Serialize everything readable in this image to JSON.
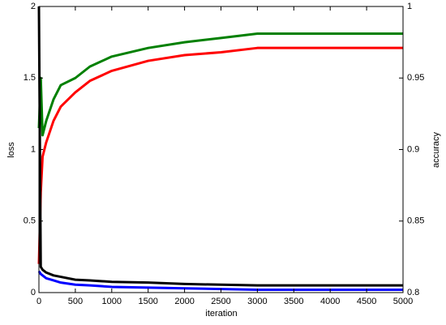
{
  "chart_data": {
    "type": "line",
    "x_label": "iteration",
    "y_label": "loss",
    "y2_label": "accuracy",
    "x": [
      0,
      25,
      50,
      100,
      200,
      300,
      500,
      700,
      1000,
      1500,
      2000,
      2500,
      3000,
      3500,
      4000,
      5000
    ],
    "series": [
      {
        "color": "#008000",
        "axis": "y2",
        "values": [
          0.915,
          0.95,
          0.91,
          0.92,
          0.935,
          0.945,
          0.95,
          0.958,
          0.965,
          0.971,
          0.975,
          0.978,
          0.981,
          0.981,
          0.981,
          0.981
        ]
      },
      {
        "color": "#ff0000",
        "axis": "y2",
        "values": [
          0.82,
          0.87,
          0.895,
          0.905,
          0.92,
          0.93,
          0.94,
          0.948,
          0.955,
          0.962,
          0.966,
          0.968,
          0.971,
          0.971,
          0.971,
          0.971
        ]
      },
      {
        "color": "#000000",
        "values": [
          2,
          0.18,
          0.16,
          0.14,
          0.12,
          0.11,
          0.09,
          0.085,
          0.075,
          0.07,
          0.06,
          0.055,
          0.05,
          0.05,
          0.05,
          0.05
        ]
      },
      {
        "color": "#0000ff",
        "values": [
          0.15,
          0.13,
          0.12,
          0.1,
          0.085,
          0.07,
          0.055,
          0.05,
          0.04,
          0.035,
          0.03,
          0.025,
          0.02,
          0.02,
          0.02,
          0.02
        ]
      }
    ],
    "xlim": [
      0,
      5000
    ],
    "xticks": [
      0,
      500,
      1000,
      1500,
      2000,
      2500,
      3000,
      3500,
      4000,
      4500,
      5000
    ],
    "ylim": [
      0,
      2
    ],
    "yticks": [
      0,
      0.5,
      1,
      1.5,
      2
    ],
    "y2lim": [
      0.8,
      1
    ],
    "y2ticks": [
      0.8,
      0.85,
      0.9,
      0.95,
      1
    ],
    "grid": false
  }
}
